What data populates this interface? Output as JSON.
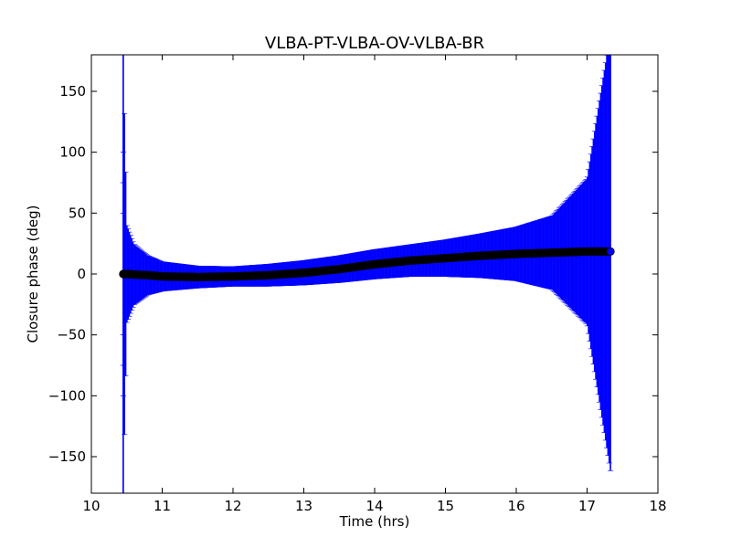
{
  "chart_data": {
    "type": "scatter",
    "title": "VLBA-PT-VLBA-OV-VLBA-BR",
    "xlabel": "Time (hrs)",
    "ylabel": "Closure phase (deg)",
    "xlim": [
      10,
      18
    ],
    "ylim": [
      -180,
      180
    ],
    "xticks": [
      10,
      11,
      12,
      13,
      14,
      15,
      16,
      17,
      18
    ],
    "yticks": [
      -150,
      -100,
      -50,
      0,
      50,
      100,
      150
    ],
    "grid": false,
    "colors": {
      "errorbar": "#0000ff",
      "point": "#000000",
      "endpoint": "#0000ff"
    },
    "series": [
      {
        "x": [
          10.45,
          10.5,
          10.6,
          10.8,
          11.0,
          11.5,
          12.0,
          12.5,
          13.0,
          13.5,
          14.0,
          14.5,
          15.0,
          15.5,
          16.0,
          16.5,
          17.0,
          17.33
        ],
        "y": [
          0,
          0,
          -0.5,
          -1,
          -2,
          -2.5,
          -2,
          -1,
          1,
          4,
          8,
          11,
          13,
          15,
          16.5,
          17.5,
          18.5,
          18.5
        ],
        "yerr": [
          180,
          40,
          25,
          16,
          12,
          9,
          8,
          9,
          10,
          11,
          12,
          13,
          15,
          18,
          22,
          30,
          60,
          180
        ]
      }
    ]
  }
}
